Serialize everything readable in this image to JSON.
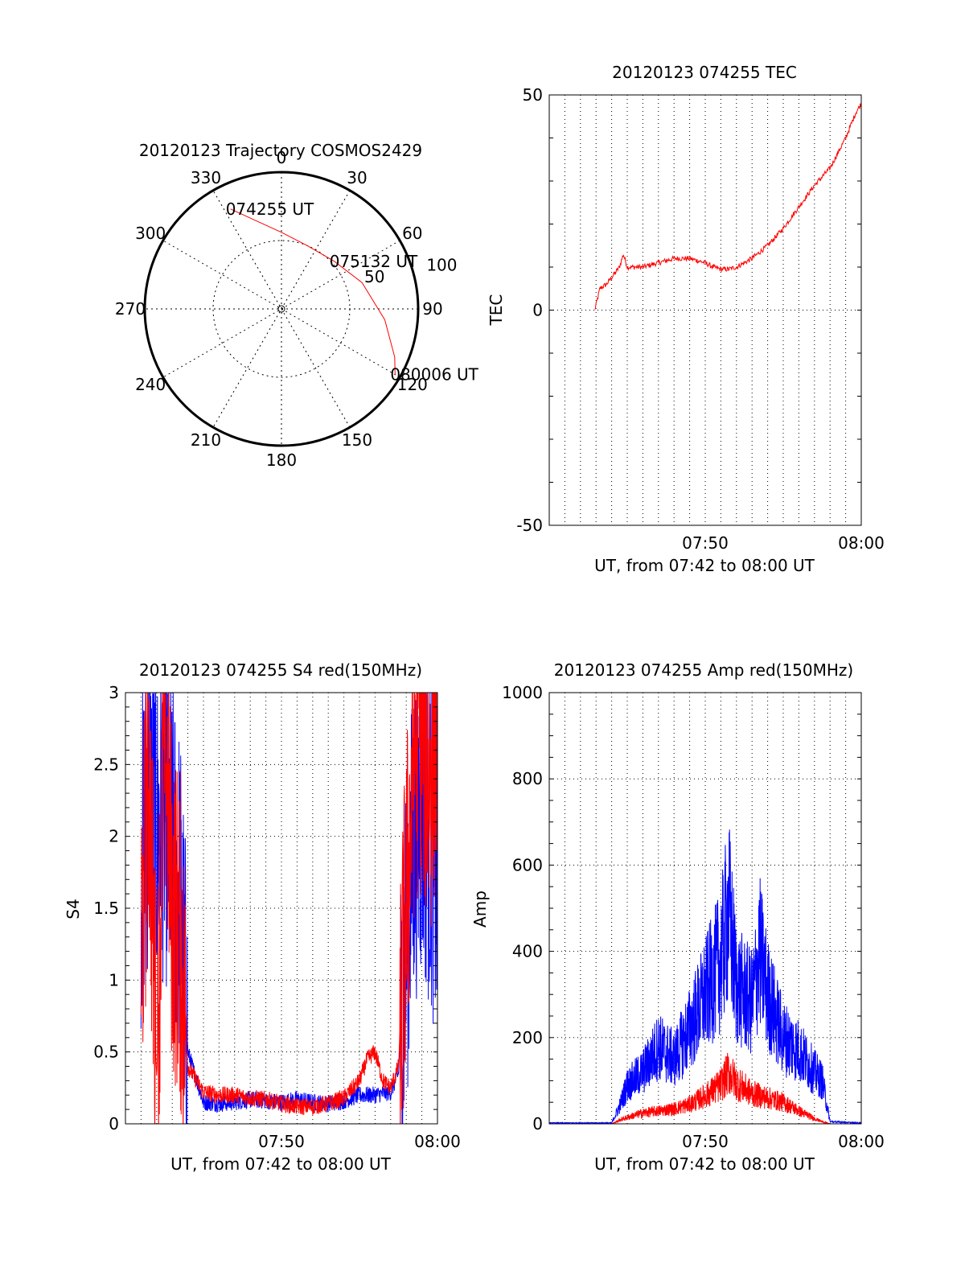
{
  "chart_data": [
    {
      "id": "trajectory",
      "type": "polar",
      "title": "20120123 Trajectory COSMOS2429",
      "angle_labels": [
        "0",
        "30",
        "60",
        "90",
        "120",
        "150",
        "180",
        "210",
        "240",
        "270",
        "300",
        "330"
      ],
      "radial_labels": [
        "50",
        "100"
      ],
      "rlim": [
        0,
        100
      ],
      "series": [
        {
          "color": "#ff0000",
          "points": [
            {
              "az": 333,
              "r": 82
            },
            {
              "az": 345,
              "r": 66
            },
            {
              "az": 0,
              "r": 56
            },
            {
              "az": 22,
              "r": 50
            },
            {
              "az": 48,
              "r": 52
            },
            {
              "az": 72,
              "r": 62
            },
            {
              "az": 96,
              "r": 76
            },
            {
              "az": 113,
              "r": 90
            },
            {
              "az": 120,
              "r": 96
            }
          ]
        }
      ],
      "annotations": [
        {
          "text": "074255 UT",
          "az": 333,
          "r": 82
        },
        {
          "text": "075132 UT",
          "az": 48,
          "r": 52
        },
        {
          "text": "080006 UT",
          "az": 120,
          "r": 96
        }
      ]
    },
    {
      "id": "tec",
      "type": "line",
      "title": "20120123 074255 TEC",
      "xlabel": "UT, from 07:42 to 08:00 UT",
      "ylabel": "TEC",
      "xlim": [
        "07:40",
        "08:00"
      ],
      "ylim": [
        -50,
        50
      ],
      "xticks": [
        "07:50",
        "08:00"
      ],
      "yticks": [
        "-50",
        "0",
        "50"
      ],
      "grid": true,
      "series": [
        {
          "color": "#ff0000",
          "x": [
            "07:42:55",
            "07:43:15",
            "07:43:40",
            "07:44:05",
            "07:44:30",
            "07:44:45",
            "07:45:00",
            "07:46:00",
            "07:47:00",
            "07:48:00",
            "07:49:00",
            "07:50:00",
            "07:50:30",
            "07:51:00",
            "07:51:30",
            "07:52:00",
            "07:53:00",
            "07:54:00",
            "07:55:00",
            "07:56:00",
            "07:57:00",
            "07:58:00",
            "07:59:00",
            "07:59:40",
            "08:00:00"
          ],
          "values": [
            0,
            5,
            6,
            8,
            10,
            13,
            10,
            10,
            11,
            12,
            12,
            11,
            10,
            9.5,
            9.5,
            10,
            12,
            15,
            19,
            24,
            29,
            33,
            40,
            46,
            48
          ]
        }
      ]
    },
    {
      "id": "s4",
      "type": "line",
      "title": "20120123 074255 S4 red(150MHz)",
      "xlabel": "UT, from 07:42 to 08:00 UT",
      "ylabel": "S4",
      "xlim": [
        "07:40",
        "08:00"
      ],
      "ylim": [
        0,
        3
      ],
      "xticks": [
        "07:50",
        "08:00"
      ],
      "yticks": [
        "0",
        "0.5",
        "1",
        "1.5",
        "2",
        "2.5",
        "3"
      ],
      "grid": true,
      "series": [
        {
          "color": "#0000ff",
          "x": [
            "07:41:00",
            "07:41:30",
            "07:42:00",
            "07:42:30",
            "07:43:00",
            "07:43:30",
            "07:44:00",
            "07:45:00",
            "07:46:00",
            "07:47:00",
            "07:48:00",
            "07:49:00",
            "07:50:00",
            "07:51:00",
            "07:52:00",
            "07:53:00",
            "07:54:00",
            "07:55:00",
            "07:56:00",
            "07:57:00",
            "07:57:30",
            "07:58:00",
            "07:58:30",
            "07:59:00",
            "07:59:30",
            "08:00:00"
          ],
          "values": [
            1.8,
            2.3,
            2.0,
            2.2,
            1.9,
            1.6,
            0.5,
            0.15,
            0.14,
            0.15,
            0.17,
            0.16,
            0.15,
            0.17,
            0.15,
            0.14,
            0.16,
            0.2,
            0.2,
            0.22,
            0.35,
            1.3,
            2.0,
            2.2,
            2.0,
            1.7
          ]
        },
        {
          "color": "#ff0000",
          "x": [
            "07:41:00",
            "07:41:30",
            "07:42:00",
            "07:42:30",
            "07:43:00",
            "07:43:30",
            "07:44:00",
            "07:45:00",
            "07:46:00",
            "07:47:00",
            "07:48:00",
            "07:49:00",
            "07:50:00",
            "07:51:00",
            "07:52:00",
            "07:53:00",
            "07:54:00",
            "07:55:00",
            "07:55:30",
            "07:56:00",
            "07:56:30",
            "07:57:00",
            "07:57:30",
            "07:58:00",
            "07:58:30",
            "07:59:00",
            "07:59:30",
            "08:00:00"
          ],
          "values": [
            1.2,
            2.5,
            0.3,
            2.8,
            1.5,
            1.3,
            0.4,
            0.22,
            0.2,
            0.2,
            0.18,
            0.17,
            0.14,
            0.12,
            0.12,
            0.14,
            0.18,
            0.3,
            0.45,
            0.5,
            0.3,
            0.25,
            0.4,
            1.5,
            2.6,
            2.8,
            2.4,
            2.9
          ]
        }
      ]
    },
    {
      "id": "amp",
      "type": "line",
      "title": "20120123 074255 Amp red(150MHz)",
      "xlabel": "UT, from 07:42 to 08:00 UT",
      "ylabel": "Amp",
      "xlim": [
        "07:40",
        "08:00"
      ],
      "ylim": [
        0,
        1000
      ],
      "xticks": [
        "07:50",
        "08:00"
      ],
      "yticks": [
        "0",
        "200",
        "400",
        "600",
        "800",
        "1000"
      ],
      "grid": true,
      "series": [
        {
          "color": "#0000ff",
          "x": [
            "07:40:00",
            "07:44:00",
            "07:44:30",
            "07:45:00",
            "07:46:00",
            "07:47:00",
            "07:48:00",
            "07:49:00",
            "07:50:00",
            "07:51:00",
            "07:51:30",
            "07:52:00",
            "07:53:00",
            "07:53:30",
            "07:54:00",
            "07:55:00",
            "07:56:00",
            "07:57:00",
            "07:57:30",
            "07:58:00",
            "08:00:00"
          ],
          "values": [
            2,
            2,
            40,
            90,
            120,
            180,
            150,
            220,
            300,
            380,
            500,
            320,
            280,
            400,
            300,
            200,
            170,
            120,
            100,
            5,
            2
          ]
        },
        {
          "color": "#ff0000",
          "x": [
            "07:40:00",
            "07:44:00",
            "07:44:30",
            "07:45:00",
            "07:46:00",
            "07:47:00",
            "07:48:00",
            "07:49:00",
            "07:50:00",
            "07:51:00",
            "07:51:30",
            "07:52:00",
            "07:53:00",
            "07:54:00",
            "07:55:00",
            "07:56:00",
            "07:57:00",
            "07:57:30",
            "07:58:00",
            "08:00:00"
          ],
          "values": [
            0,
            0,
            8,
            15,
            25,
            30,
            35,
            45,
            65,
            90,
            120,
            95,
            70,
            60,
            50,
            30,
            12,
            5,
            0,
            0
          ]
        }
      ]
    }
  ]
}
